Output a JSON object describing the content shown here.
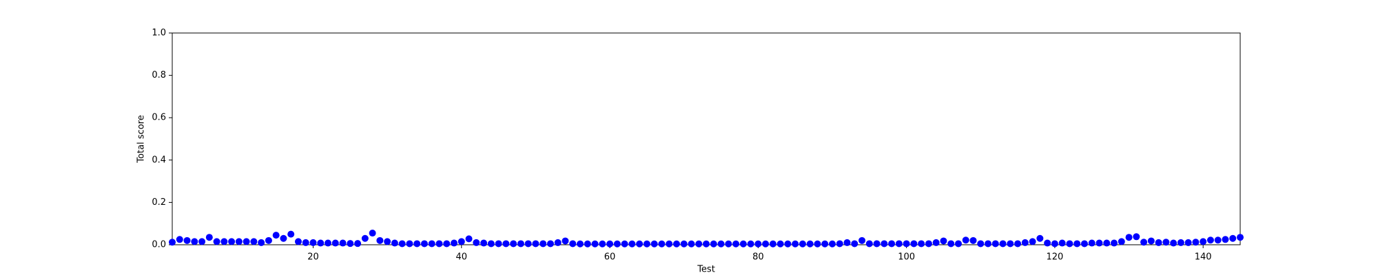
{
  "chart_data": {
    "type": "scatter",
    "xlabel": "Test",
    "ylabel": "Total score",
    "xlim": [
      1,
      145
    ],
    "ylim": [
      0,
      1
    ],
    "xticks": [
      20,
      40,
      60,
      80,
      100,
      120,
      140
    ],
    "yticks": [
      {
        "value": 0,
        "label": "0.0"
      },
      0.2,
      0.4,
      0.6,
      0.8,
      {
        "value": 1,
        "label": "1.0"
      }
    ],
    "grid": false,
    "series": [
      {
        "color": "#0000ff",
        "x": [
          1,
          2,
          3,
          4,
          5,
          6,
          7,
          8,
          9,
          10,
          11,
          12,
          13,
          14,
          15,
          16,
          17,
          18,
          19,
          20,
          21,
          22,
          23,
          24,
          25,
          26,
          27,
          28,
          29,
          30,
          31,
          32,
          33,
          34,
          35,
          36,
          37,
          38,
          39,
          40,
          41,
          42,
          43,
          44,
          45,
          46,
          47,
          48,
          49,
          50,
          51,
          52,
          53,
          54,
          55,
          56,
          57,
          58,
          59,
          60,
          61,
          62,
          63,
          64,
          65,
          66,
          67,
          68,
          69,
          70,
          71,
          72,
          73,
          74,
          75,
          76,
          77,
          78,
          79,
          80,
          81,
          82,
          83,
          84,
          85,
          86,
          87,
          88,
          89,
          90,
          91,
          92,
          93,
          94,
          95,
          96,
          97,
          98,
          99,
          100,
          101,
          102,
          103,
          104,
          105,
          106,
          107,
          108,
          109,
          110,
          111,
          112,
          113,
          114,
          115,
          116,
          117,
          118,
          119,
          120,
          121,
          122,
          123,
          124,
          125,
          126,
          127,
          128,
          129,
          130,
          131,
          132,
          133,
          134,
          135,
          136,
          137,
          138,
          139,
          140,
          141,
          142,
          143,
          144,
          145
        ],
        "values": [
          0.012,
          0.025,
          0.02,
          0.015,
          0.015,
          0.035,
          0.015,
          0.015,
          0.015,
          0.015,
          0.015,
          0.015,
          0.01,
          0.02,
          0.045,
          0.03,
          0.05,
          0.015,
          0.01,
          0.01,
          0.008,
          0.008,
          0.008,
          0.008,
          0.006,
          0.006,
          0.03,
          0.055,
          0.02,
          0.015,
          0.008,
          0.005,
          0.005,
          0.005,
          0.005,
          0.005,
          0.005,
          0.005,
          0.008,
          0.015,
          0.028,
          0.01,
          0.008,
          0.005,
          0.005,
          0.005,
          0.005,
          0.005,
          0.005,
          0.005,
          0.005,
          0.005,
          0.01,
          0.018,
          0.005,
          0.004,
          0.004,
          0.004,
          0.004,
          0.004,
          0.004,
          0.004,
          0.004,
          0.004,
          0.004,
          0.004,
          0.004,
          0.004,
          0.004,
          0.004,
          0.004,
          0.004,
          0.004,
          0.004,
          0.004,
          0.004,
          0.004,
          0.004,
          0.004,
          0.004,
          0.004,
          0.004,
          0.004,
          0.004,
          0.004,
          0.004,
          0.004,
          0.004,
          0.004,
          0.004,
          0.005,
          0.01,
          0.005,
          0.02,
          0.005,
          0.005,
          0.005,
          0.005,
          0.005,
          0.005,
          0.005,
          0.005,
          0.005,
          0.01,
          0.018,
          0.005,
          0.005,
          0.022,
          0.02,
          0.005,
          0.005,
          0.005,
          0.005,
          0.005,
          0.005,
          0.01,
          0.015,
          0.03,
          0.008,
          0.005,
          0.008,
          0.005,
          0.005,
          0.005,
          0.008,
          0.008,
          0.008,
          0.008,
          0.015,
          0.035,
          0.038,
          0.012,
          0.018,
          0.01,
          0.012,
          0.008,
          0.01,
          0.01,
          0.012,
          0.015,
          0.022,
          0.022,
          0.025,
          0.03,
          0.035
        ]
      }
    ]
  }
}
